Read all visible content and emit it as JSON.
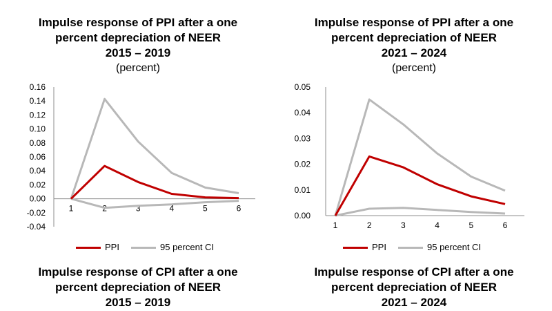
{
  "chart_data": [
    {
      "type": "line",
      "title_lines": [
        "Impulse response of PPI after a one",
        "percent depreciation of NEER",
        "2015 – 2019"
      ],
      "unit": "(percent)",
      "x": [
        1,
        2,
        3,
        4,
        5,
        6
      ],
      "ylim": [
        -0.04,
        0.16
      ],
      "yticks": [
        "0.16",
        "0.14",
        "0.12",
        "0.10",
        "0.08",
        "0.06",
        "0.04",
        "0.02",
        "0.00",
        "-0.02",
        "-0.04"
      ],
      "series": [
        {
          "name": "PPI",
          "color": "#c00000",
          "values": [
            0.0,
            0.047,
            0.024,
            0.007,
            0.002,
            0.001
          ]
        },
        {
          "name": "95 percent CI",
          "color": "#b8b8b8",
          "values": [
            0.0,
            0.143,
            0.082,
            0.037,
            0.016,
            0.008
          ]
        },
        {
          "color": "#b8b8b8",
          "values": [
            0.0,
            -0.013,
            -0.01,
            -0.008,
            -0.005,
            -0.003
          ]
        }
      ],
      "legend": [
        "PPI",
        "95 percent CI"
      ]
    },
    {
      "type": "line",
      "title_lines": [
        "Impulse response of PPI after a one",
        "percent depreciation of NEER",
        "2021 – 2024"
      ],
      "unit": "(percent)",
      "x": [
        1,
        2,
        3,
        4,
        5,
        6
      ],
      "ylim": [
        0.0,
        0.05
      ],
      "yticks": [
        "0.05",
        "0.04",
        "0.03",
        "0.02",
        "0.01",
        "0.00"
      ],
      "series": [
        {
          "name": "PPI",
          "color": "#c00000",
          "values": [
            0.0,
            0.023,
            0.0188,
            0.0122,
            0.0075,
            0.0045
          ]
        },
        {
          "name": "95 percent CI",
          "color": "#b8b8b8",
          "values": [
            0.0,
            0.0452,
            0.0355,
            0.0242,
            0.0152,
            0.0097
          ]
        },
        {
          "color": "#b8b8b8",
          "values": [
            0.0,
            0.0027,
            0.003,
            0.0022,
            0.0014,
            0.0008
          ]
        }
      ],
      "legend": [
        "PPI",
        "95 percent CI"
      ]
    }
  ],
  "bottom_titles": [
    [
      "Impulse response of CPI after a one",
      "percent depreciation of NEER",
      "2015 – 2019"
    ],
    [
      "Impulse response of CPI after a one",
      "percent depreciation of NEER",
      "2021 – 2024"
    ]
  ]
}
